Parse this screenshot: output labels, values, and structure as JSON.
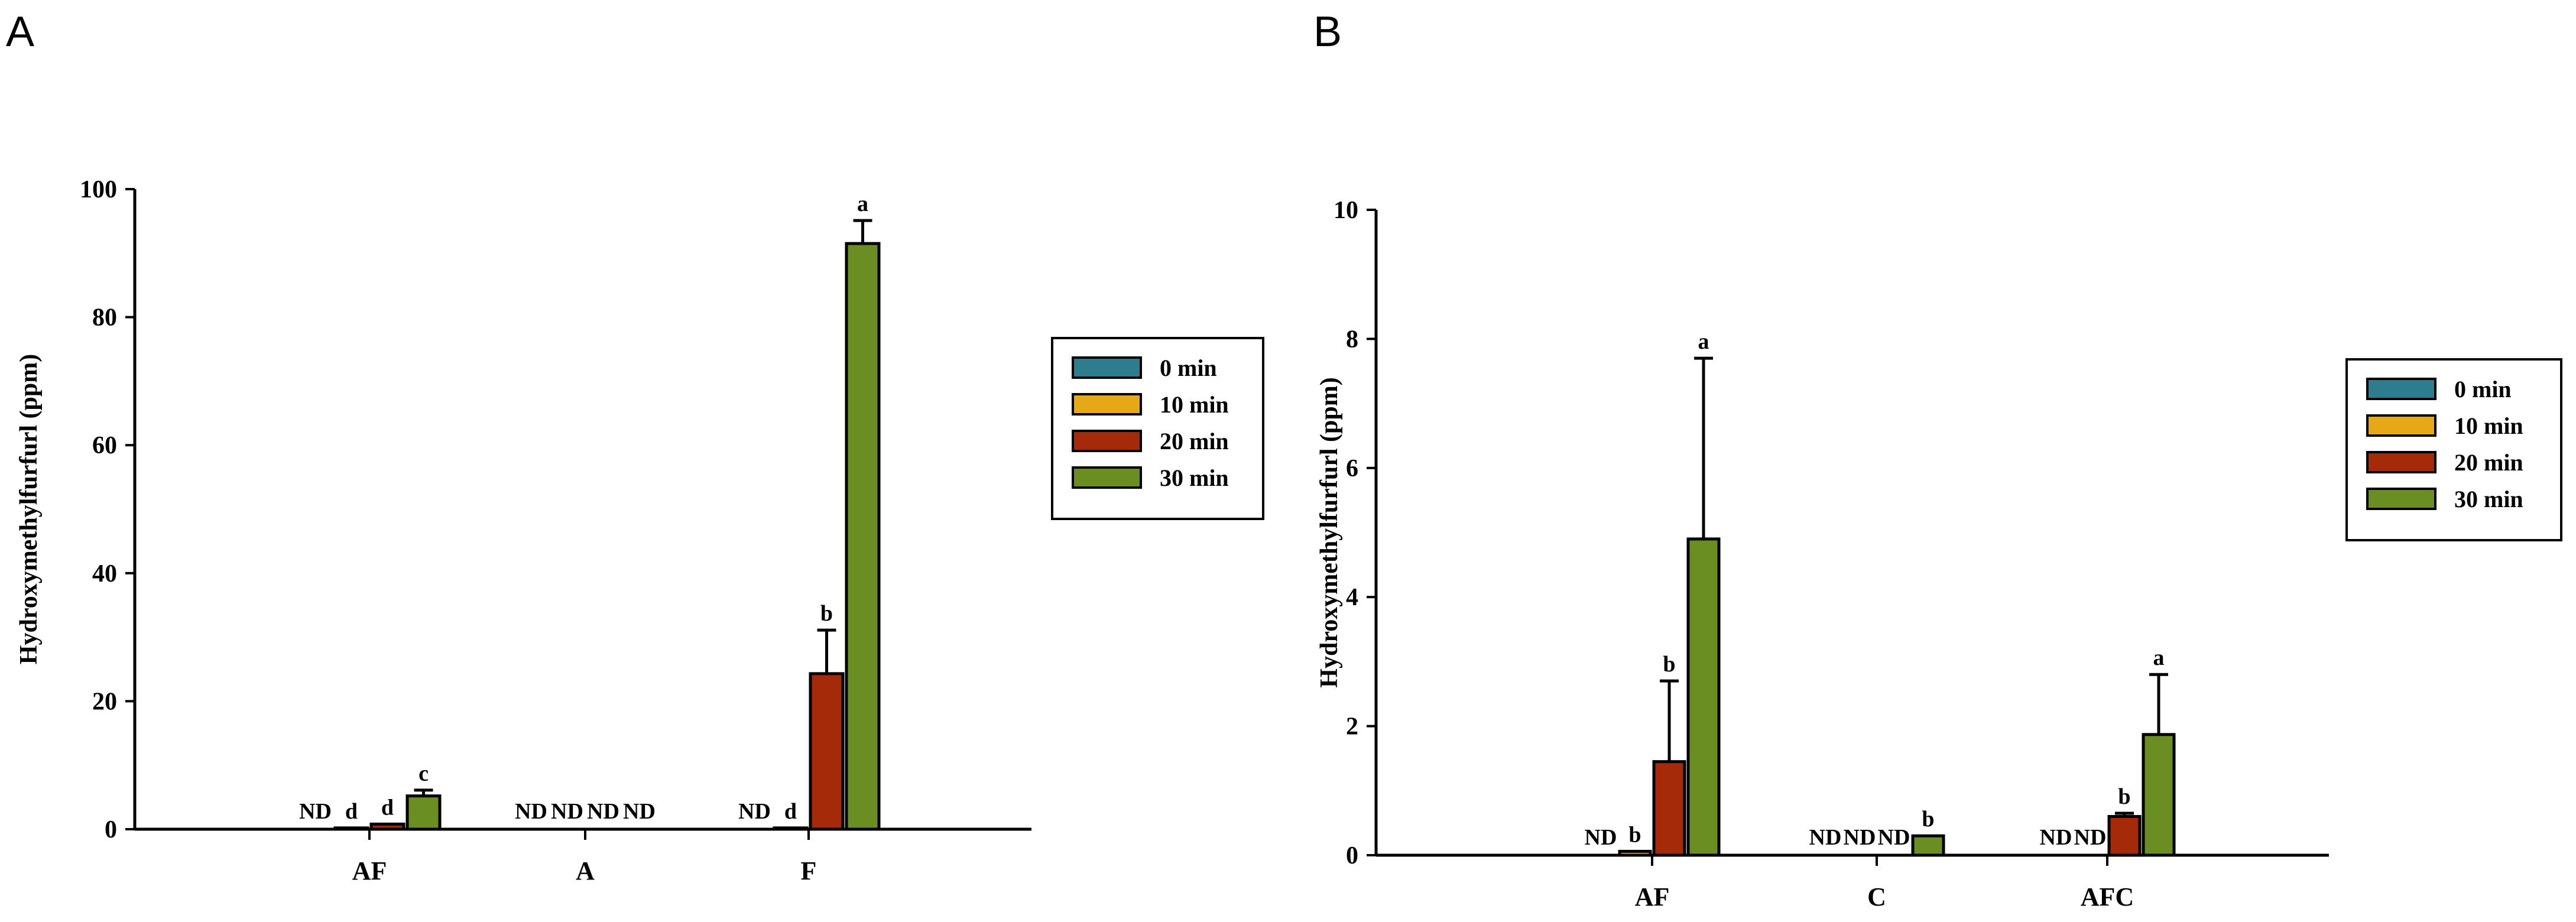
{
  "panels": {
    "a_label": "A",
    "b_label": "B"
  },
  "chart_data": [
    {
      "type": "bar",
      "panel": "A",
      "ylabel": "Hydroxymethylfurfurl (ppm)",
      "ylim": [
        0,
        100
      ],
      "yticks": [
        "0",
        "20",
        "40",
        "60",
        "80",
        "100"
      ],
      "categories": [
        "AF",
        "A",
        "F"
      ],
      "legend_position": "right",
      "series": [
        {
          "name": "0 min",
          "color": "#2e7d8f",
          "values": [
            0,
            0,
            0
          ],
          "errors": [
            0,
            0,
            0
          ],
          "labels": [
            "ND",
            "ND",
            "ND"
          ]
        },
        {
          "name": "10 min",
          "color": "#e6a817",
          "values": [
            0.2,
            0,
            0.2
          ],
          "errors": [
            0,
            0,
            0
          ],
          "labels": [
            "d",
            "ND",
            "d"
          ]
        },
        {
          "name": "20 min",
          "color": "#a52a0a",
          "values": [
            0.8,
            0,
            24.3
          ],
          "errors": [
            0,
            0,
            6.8
          ],
          "labels": [
            "d",
            "ND",
            "b"
          ]
        },
        {
          "name": "30 min",
          "color": "#6b8e23",
          "values": [
            5.2,
            0,
            91.5
          ],
          "errors": [
            0.9,
            0,
            3.6
          ],
          "labels": [
            "c",
            "ND",
            "a"
          ]
        }
      ]
    },
    {
      "type": "bar",
      "panel": "B",
      "ylabel": "Hydroxymethylfurfurl (ppm)",
      "ylim": [
        0,
        10
      ],
      "yticks": [
        "0",
        "2",
        "4",
        "6",
        "8",
        "10"
      ],
      "categories": [
        "AF",
        "C",
        "AFC"
      ],
      "legend_position": "right",
      "series": [
        {
          "name": "0 min",
          "color": "#2e7d8f",
          "values": [
            0,
            0,
            0
          ],
          "errors": [
            0,
            0,
            0
          ],
          "labels": [
            "ND",
            "ND",
            "ND"
          ]
        },
        {
          "name": "10 min",
          "color": "#e6a817",
          "values": [
            0.06,
            0,
            0
          ],
          "errors": [
            0,
            0,
            0
          ],
          "labels": [
            "b",
            "ND",
            "ND"
          ]
        },
        {
          "name": "20 min",
          "color": "#a52a0a",
          "values": [
            1.45,
            0,
            0.6
          ],
          "errors": [
            1.25,
            0,
            0.05
          ],
          "labels": [
            "b",
            "ND",
            "b"
          ]
        },
        {
          "name": "30 min",
          "color": "#6b8e23",
          "values": [
            4.9,
            0.3,
            1.87
          ],
          "errors": [
            2.8,
            0,
            0.93
          ],
          "labels": [
            "a",
            "b",
            "a"
          ]
        }
      ]
    }
  ]
}
